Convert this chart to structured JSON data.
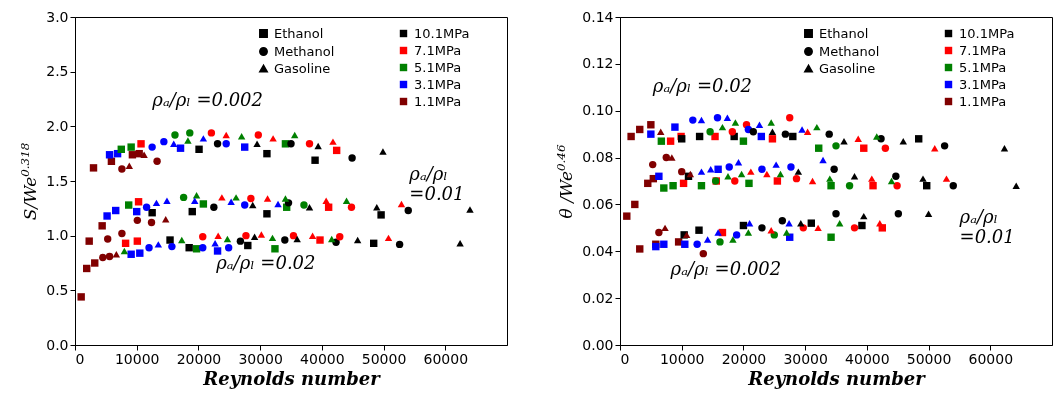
{
  "chart_data": [
    {
      "type": "scatter",
      "xlabel": "Reynolds number",
      "ylabel": "S/We$^{0.318}$",
      "xlim": [
        0,
        70000
      ],
      "xticks": [
        0,
        10000,
        20000,
        30000,
        40000,
        50000,
        60000
      ],
      "ylim": [
        0,
        3
      ],
      "yticks": [
        {
          "value": 0,
          "label": "0.0"
        },
        0.5,
        {
          "value": 1,
          "label": "1.0"
        },
        1.5,
        {
          "value": 2,
          "label": "2.0"
        },
        2.5,
        {
          "value": 3,
          "label": "3.0"
        }
      ],
      "legend": "top right",
      "annotations": [
        "ρₐ/ρₗ =0.002",
        "ρₐ/ρₗ\n=0.01",
        "ρₐ/ρₗ =0.02"
      ],
      "series": [
        {
          "name": "Ethanol",
          "marker": "square",
          "x": [
            3000,
            5900,
            5600,
            6900,
            7500,
            9100,
            10700,
            9300,
            10400,
            20100,
            31100,
            38900,
            42400,
            17100,
            27500,
            34100,
            2300,
            4400,
            5200,
            6600,
            8700,
            10300,
            10000,
            12500,
            19000,
            20800,
            31100,
            34300,
            41100,
            49600,
            1000,
            1900,
            3200,
            8200,
            10100,
            9100,
            10500,
            15400,
            18500,
            19700,
            23100,
            28000,
            32400,
            39700,
            48400
          ],
          "values": [
            1.62,
            1.68,
            1.74,
            1.75,
            1.79,
            1.81,
            1.84,
            1.74,
            1.75,
            1.79,
            1.75,
            1.69,
            1.78,
            1.8,
            1.81,
            1.84,
            0.95,
            1.09,
            1.18,
            1.23,
            1.28,
            1.31,
            1.22,
            1.21,
            1.22,
            1.29,
            1.2,
            1.26,
            1.26,
            1.19,
            0.44,
            0.7,
            0.75,
            0.93,
            0.95,
            0.83,
            0.84,
            0.96,
            0.89,
            0.88,
            0.86,
            0.91,
            0.88,
            0.96,
            0.93
          ],
          "colors": [
            "#800000",
            "#800000",
            "#0000ff",
            "#0000ff",
            "#008000",
            "#008000",
            "#ff0000",
            "#800000",
            "#800000",
            "#000000",
            "#000000",
            "#000000",
            "#ff0000",
            "#0000ff",
            "#0000ff",
            "#008000",
            "#800000",
            "#800000",
            "#0000ff",
            "#0000ff",
            "#008000",
            "#ff0000",
            "#0000ff",
            "#000000",
            "#000000",
            "#008000",
            "#000000",
            "#008000",
            "#ff0000",
            "#000000",
            "#800000",
            "#800000",
            "#800000",
            "#ff0000",
            "#ff0000",
            "#0000ff",
            "#0000ff",
            "#000000",
            "#000000",
            "#008000",
            "#0000ff",
            "#000000",
            "#008000",
            "#ff0000",
            "#000000"
          ]
        },
        {
          "name": "Methanol",
          "marker": "circle",
          "x": [
            7600,
            13300,
            12500,
            14400,
            16200,
            18600,
            22100,
            23100,
            24500,
            29700,
            35000,
            38000,
            44900,
            5300,
            7600,
            10100,
            12400,
            11600,
            17600,
            22500,
            27500,
            28500,
            37100,
            34600,
            44800,
            54000,
            4500,
            5600,
            12000,
            15700,
            20700,
            20700,
            24900,
            26800,
            27700,
            34000,
            35400,
            42300,
            42900,
            52600
          ],
          "values": [
            1.61,
            1.68,
            1.81,
            1.86,
            1.92,
            1.94,
            1.94,
            1.84,
            1.84,
            1.92,
            1.84,
            1.84,
            1.71,
            0.97,
            1.02,
            1.14,
            1.12,
            1.26,
            1.35,
            1.26,
            1.28,
            1.34,
            1.28,
            1.3,
            1.26,
            1.23,
            0.8,
            0.81,
            0.89,
            0.9,
            0.99,
            0.89,
            0.89,
            0.95,
            1.0,
            0.96,
            1.0,
            0.94,
            0.99,
            0.92
          ],
          "colors": [
            "#800000",
            "#800000",
            "#0000ff",
            "#0000ff",
            "#008000",
            "#008000",
            "#ff0000",
            "#000000",
            "#0000ff",
            "#ff0000",
            "#000000",
            "#ff0000",
            "#000000",
            "#800000",
            "#800000",
            "#800000",
            "#800000",
            "#0000ff",
            "#008000",
            "#000000",
            "#0000ff",
            "#ff0000",
            "#008000",
            "#000000",
            "#ff0000",
            "#000000",
            "#800000",
            "#800000",
            "#0000ff",
            "#0000ff",
            "#ff0000",
            "#0000ff",
            "#0000ff",
            "#000000",
            "#ff0000",
            "#000000",
            "#ff0000",
            "#000000",
            "#ff0000",
            "#000000"
          ]
        },
        {
          "name": "Gasoline",
          "marker": "triangle",
          "x": [
            8800,
            11200,
            16000,
            18300,
            20800,
            24500,
            27000,
            29500,
            32100,
            35600,
            39400,
            41800,
            49900,
            14700,
            13200,
            14900,
            19700,
            19400,
            23800,
            26100,
            25300,
            28800,
            31200,
            32900,
            34100,
            38000,
            40700,
            44000,
            48900,
            52900,
            64000,
            6700,
            8000,
            13500,
            17300,
            23200,
            22700,
            24700,
            29100,
            30200,
            32000,
            36000,
            38500,
            41600,
            45800,
            50800,
            62400
          ],
          "values": [
            1.64,
            1.74,
            1.84,
            1.87,
            1.89,
            1.92,
            1.91,
            1.84,
            1.89,
            1.92,
            1.82,
            1.86,
            1.77,
            1.15,
            1.3,
            1.32,
            1.37,
            1.32,
            1.35,
            1.35,
            1.31,
            1.28,
            1.34,
            1.29,
            1.34,
            1.26,
            1.32,
            1.32,
            1.26,
            1.29,
            1.24,
            0.83,
            0.86,
            0.92,
            0.96,
            1.0,
            0.93,
            0.97,
            0.99,
            1.01,
            0.98,
            0.97,
            1.0,
            0.97,
            0.96,
            0.98,
            0.93
          ],
          "colors": [
            "#800000",
            "#800000",
            "#0000ff",
            "#008000",
            "#0000ff",
            "#ff0000",
            "#008000",
            "#000000",
            "#ff0000",
            "#008000",
            "#000000",
            "#ff0000",
            "#000000",
            "#800000",
            "#0000ff",
            "#0000ff",
            "#008000",
            "#0000ff",
            "#ff0000",
            "#008000",
            "#0000ff",
            "#000000",
            "#ff0000",
            "#0000ff",
            "#008000",
            "#000000",
            "#ff0000",
            "#008000",
            "#000000",
            "#ff0000",
            "#000000",
            "#800000",
            "#008000",
            "#0000ff",
            "#008000",
            "#ff0000",
            "#0000ff",
            "#008000",
            "#000000",
            "#ff0000",
            "#008000",
            "#000000",
            "#ff0000",
            "#008000",
            "#000000",
            "#ff0000",
            "#000000"
          ]
        },
        {
          "name": "10.1MPa",
          "color": "#000000",
          "marker": "square"
        },
        {
          "name": "7.1MPa",
          "color": "#ff0000",
          "marker": "square"
        },
        {
          "name": "5.1MPa",
          "color": "#008000",
          "marker": "square"
        },
        {
          "name": "3.1MPa",
          "color": "#0000ff",
          "marker": "square"
        },
        {
          "name": "1.1MPa",
          "color": "#800000",
          "marker": "square"
        }
      ]
    },
    {
      "type": "scatter",
      "xlabel": "Reynolds number",
      "ylabel": "θ /We$^{0.46}$",
      "xlim": [
        0,
        70000
      ],
      "xticks": [
        0,
        10000,
        20000,
        30000,
        40000,
        50000,
        60000
      ],
      "ylim": [
        0,
        0.14
      ],
      "yticks": [
        {
          "value": 0,
          "label": "0.00"
        },
        {
          "value": 0.02,
          "label": "0.02"
        },
        {
          "value": 0.04,
          "label": "0.04"
        },
        {
          "value": 0.06,
          "label": "0.06"
        },
        {
          "value": 0.08,
          "label": "0.08"
        },
        {
          "value": 0.1,
          "label": "0.10"
        },
        {
          "value": 0.12,
          "label": "0.12"
        },
        {
          "value": 0.14,
          "label": "0.14"
        }
      ],
      "legend": "top right",
      "annotations": [
        "ρₐ/ρₗ =0.02",
        "ρₐ/ρₗ\n=0.01",
        "ρₐ/ρₗ =0.002"
      ],
      "series": [
        {
          "name": "Ethanol",
          "marker": "square",
          "x": [
            1100,
            2400,
            1800,
            3200,
            5000,
            5000,
            6700,
            8200,
            8900,
            9900,
            10000,
            12900,
            15400,
            18500,
            20000,
            22900,
            24700,
            28000,
            32200,
            39500,
            48400,
            4500,
            5400,
            6300,
            7100,
            8600,
            10300,
            11100,
            13200,
            15900,
            15600,
            20900,
            25500,
            34200,
            41000,
            49700,
            3200,
            5800,
            5800,
            7100,
            9500,
            10500,
            10400,
            12800,
            16600,
            20000,
            31000,
            27500,
            34200,
            39200,
            42500
          ],
          "values": [
            0.055,
            0.06,
            0.089,
            0.092,
            0.094,
            0.09,
            0.087,
            0.087,
            0.093,
            0.089,
            0.088,
            0.089,
            0.089,
            0.089,
            0.087,
            0.089,
            0.088,
            0.089,
            0.084,
            0.084,
            0.088,
            0.069,
            0.071,
            0.072,
            0.067,
            0.068,
            0.069,
            0.072,
            0.068,
            0.075,
            0.07,
            0.069,
            0.07,
            0.068,
            0.068,
            0.068,
            0.041,
            0.043,
            0.042,
            0.043,
            0.044,
            0.043,
            0.047,
            0.049,
            0.048,
            0.051,
            0.052,
            0.046,
            0.046,
            0.051,
            0.05
          ],
          "colors": [
            "#800000",
            "#800000",
            "#800000",
            "#800000",
            "#800000",
            "#0000ff",
            "#008000",
            "#ff0000",
            "#0000ff",
            "#ff0000",
            "#000000",
            "#000000",
            "#ff0000",
            "#000000",
            "#008000",
            "#0000ff",
            "#ff0000",
            "#000000",
            "#008000",
            "#ff0000",
            "#000000",
            "#800000",
            "#800000",
            "#0000ff",
            "#008000",
            "#008000",
            "#ff0000",
            "#000000",
            "#008000",
            "#0000ff",
            "#ff0000",
            "#008000",
            "#ff0000",
            "#008000",
            "#ff0000",
            "#000000",
            "#800000",
            "#800000",
            "#0000ff",
            "#0000ff",
            "#800000",
            "#0000ff",
            "#000000",
            "#000000",
            "#ff0000",
            "#000000",
            "#000000",
            "#0000ff",
            "#008000",
            "#000000",
            "#ff0000"
          ]
        },
        {
          "name": "Methanol",
          "marker": "circle",
          "x": [
            11800,
            14600,
            15800,
            18200,
            20500,
            20800,
            21600,
            26800,
            27500,
            33900,
            35000,
            42300,
            43000,
            52600,
            5300,
            7500,
            10000,
            15500,
            18600,
            17700,
            23000,
            27700,
            28600,
            34700,
            37200,
            44700,
            44900,
            54000,
            6300,
            13500,
            12500,
            16200,
            18900,
            23000,
            25000,
            26300,
            29700,
            35000,
            38000,
            45100
          ],
          "values": [
            0.096,
            0.091,
            0.097,
            0.091,
            0.094,
            0.092,
            0.091,
            0.09,
            0.097,
            0.09,
            0.085,
            0.088,
            0.084,
            0.085,
            0.077,
            0.08,
            0.074,
            0.07,
            0.07,
            0.076,
            0.075,
            0.076,
            0.071,
            0.075,
            0.068,
            0.072,
            0.068,
            0.068,
            0.048,
            0.039,
            0.043,
            0.044,
            0.047,
            0.05,
            0.047,
            0.053,
            0.05,
            0.056,
            0.05,
            0.056
          ],
          "colors": [
            "#0000ff",
            "#008000",
            "#0000ff",
            "#ff0000",
            "#ff0000",
            "#0000ff",
            "#000000",
            "#000000",
            "#ff0000",
            "#000000",
            "#008000",
            "#000000",
            "#ff0000",
            "#000000",
            "#800000",
            "#800000",
            "#800000",
            "#008000",
            "#ff0000",
            "#0000ff",
            "#0000ff",
            "#0000ff",
            "#ff0000",
            "#000000",
            "#008000",
            "#000000",
            "#ff0000",
            "#000000",
            "#800000",
            "#800000",
            "#0000ff",
            "#008000",
            "#0000ff",
            "#000000",
            "#008000",
            "#000000",
            "#ff0000",
            "#000000",
            "#ff0000",
            "#000000"
          ]
        },
        {
          "name": "Gasoline",
          "marker": "triangle",
          "x": [
            6600,
            13200,
            17400,
            18700,
            16600,
            22600,
            24500,
            24700,
            29500,
            30400,
            31900,
            32900,
            36300,
            38600,
            41600,
            45900,
            51000,
            62300,
            8400,
            11400,
            13200,
            14700,
            19200,
            17500,
            21200,
            19700,
            23800,
            25300,
            26000,
            28900,
            31200,
            34000,
            38000,
            40800,
            44000,
            49100,
            52900,
            64200,
            7300,
            10800,
            14200,
            15900,
            18300,
            20800,
            21000,
            24500,
            27000,
            27400,
            29300,
            32100,
            35600,
            39500,
            42100,
            50000
          ],
          "values": [
            0.091,
            0.096,
            0.097,
            0.095,
            0.093,
            0.094,
            0.095,
            0.091,
            0.092,
            0.091,
            0.093,
            0.079,
            0.087,
            0.088,
            0.089,
            0.087,
            0.084,
            0.084,
            0.08,
            0.073,
            0.074,
            0.075,
            0.078,
            0.072,
            0.074,
            0.073,
            0.073,
            0.077,
            0.073,
            0.074,
            0.07,
            0.071,
            0.072,
            0.071,
            0.07,
            0.071,
            0.071,
            0.068,
            0.05,
            0.047,
            0.045,
            0.048,
            0.045,
            0.048,
            0.052,
            0.049,
            0.048,
            0.052,
            0.052,
            0.05,
            0.052,
            0.055,
            0.052,
            0.056
          ],
          "colors": [
            "#800000",
            "#0000ff",
            "#0000ff",
            "#008000",
            "#008000",
            "#0000ff",
            "#008000",
            "#000000",
            "#0000ff",
            "#ff0000",
            "#008000",
            "#0000ff",
            "#000000",
            "#ff0000",
            "#008000",
            "#000000",
            "#ff0000",
            "#000000",
            "#800000",
            "#800000",
            "#0000ff",
            "#0000ff",
            "#0000ff",
            "#008000",
            "#ff0000",
            "#008000",
            "#ff0000",
            "#0000ff",
            "#008000",
            "#000000",
            "#ff0000",
            "#008000",
            "#000000",
            "#ff0000",
            "#008000",
            "#000000",
            "#ff0000",
            "#000000",
            "#800000",
            "#800000",
            "#0000ff",
            "#0000ff",
            "#008000",
            "#008000",
            "#0000ff",
            "#ff0000",
            "#008000",
            "#0000ff",
            "#000000",
            "#ff0000",
            "#008000",
            "#000000",
            "#ff0000",
            "#000000"
          ]
        },
        {
          "name": "10.1MPa",
          "color": "#000000",
          "marker": "square"
        },
        {
          "name": "7.1MPa",
          "color": "#ff0000",
          "marker": "square"
        },
        {
          "name": "5.1MPa",
          "color": "#008000",
          "marker": "square"
        },
        {
          "name": "3.1MPa",
          "color": "#0000ff",
          "marker": "square"
        },
        {
          "name": "1.1MPa",
          "color": "#800000",
          "marker": "square"
        }
      ]
    }
  ]
}
